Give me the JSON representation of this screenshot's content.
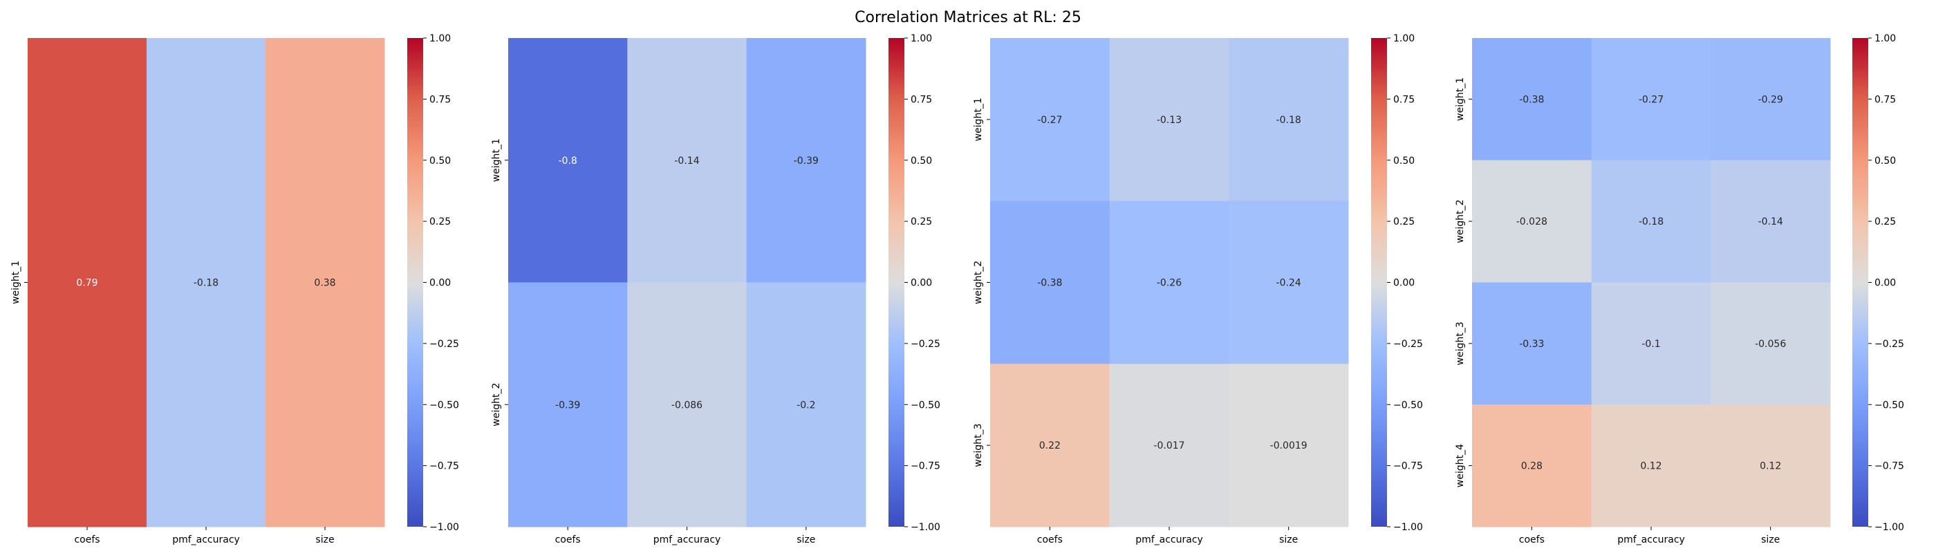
{
  "figure": {
    "title": "Correlation Matrices at RL: 25"
  },
  "chart_data": [
    {
      "type": "heatmap",
      "colormap": "coolwarm",
      "vmin": -1,
      "vmax": 1,
      "x_categories": [
        "coefs",
        "pmf_accuracy",
        "size"
      ],
      "y_categories": [
        "weight_1"
      ],
      "values": [
        [
          0.79,
          -0.18,
          0.38
        ]
      ],
      "value_labels": [
        [
          "0.79",
          "-0.18",
          "0.38"
        ]
      ],
      "colorbar_ticks": [
        "1.00",
        "0.75",
        "0.50",
        "0.25",
        "0.00",
        "−0.25",
        "−0.50",
        "−0.75",
        "−1.00"
      ]
    },
    {
      "type": "heatmap",
      "colormap": "coolwarm",
      "vmin": -1,
      "vmax": 1,
      "x_categories": [
        "coefs",
        "pmf_accuracy",
        "size"
      ],
      "y_categories": [
        "weight_1",
        "weight_2"
      ],
      "values": [
        [
          -0.8,
          -0.14,
          -0.39
        ],
        [
          -0.39,
          -0.086,
          -0.2
        ]
      ],
      "value_labels": [
        [
          "-0.8",
          "-0.14",
          "-0.39"
        ],
        [
          "-0.39",
          "-0.086",
          "-0.2"
        ]
      ],
      "colorbar_ticks": [
        "1.00",
        "0.75",
        "0.50",
        "0.25",
        "0.00",
        "−0.25",
        "−0.50",
        "−0.75",
        "−1.00"
      ]
    },
    {
      "type": "heatmap",
      "colormap": "coolwarm",
      "vmin": -1,
      "vmax": 1,
      "x_categories": [
        "coefs",
        "pmf_accuracy",
        "size"
      ],
      "y_categories": [
        "weight_1",
        "weight_2",
        "weight_3"
      ],
      "values": [
        [
          -0.27,
          -0.13,
          -0.18
        ],
        [
          -0.38,
          -0.26,
          -0.24
        ],
        [
          0.22,
          -0.017,
          -0.0019
        ]
      ],
      "value_labels": [
        [
          "-0.27",
          "-0.13",
          "-0.18"
        ],
        [
          "-0.38",
          "-0.26",
          "-0.24"
        ],
        [
          "0.22",
          "-0.017",
          "-0.0019"
        ]
      ],
      "colorbar_ticks": [
        "1.00",
        "0.75",
        "0.50",
        "0.25",
        "0.00",
        "−0.25",
        "−0.50",
        "−0.75",
        "−1.00"
      ]
    },
    {
      "type": "heatmap",
      "colormap": "coolwarm",
      "vmin": -1,
      "vmax": 1,
      "x_categories": [
        "coefs",
        "pmf_accuracy",
        "size"
      ],
      "y_categories": [
        "weight_1",
        "weight_2",
        "weight_3",
        "weight_4"
      ],
      "values": [
        [
          -0.38,
          -0.27,
          -0.29
        ],
        [
          -0.028,
          -0.18,
          -0.14
        ],
        [
          -0.33,
          -0.1,
          -0.056
        ],
        [
          0.28,
          0.12,
          0.12
        ]
      ],
      "value_labels": [
        [
          "-0.38",
          "-0.27",
          "-0.29"
        ],
        [
          "-0.028",
          "-0.18",
          "-0.14"
        ],
        [
          "-0.33",
          "-0.1",
          "-0.056"
        ],
        [
          "0.28",
          "0.12",
          "0.12"
        ]
      ],
      "colorbar_ticks": [
        "1.00",
        "0.75",
        "0.50",
        "0.25",
        "0.00",
        "−0.25",
        "−0.50",
        "−0.75",
        "−1.00"
      ]
    }
  ]
}
